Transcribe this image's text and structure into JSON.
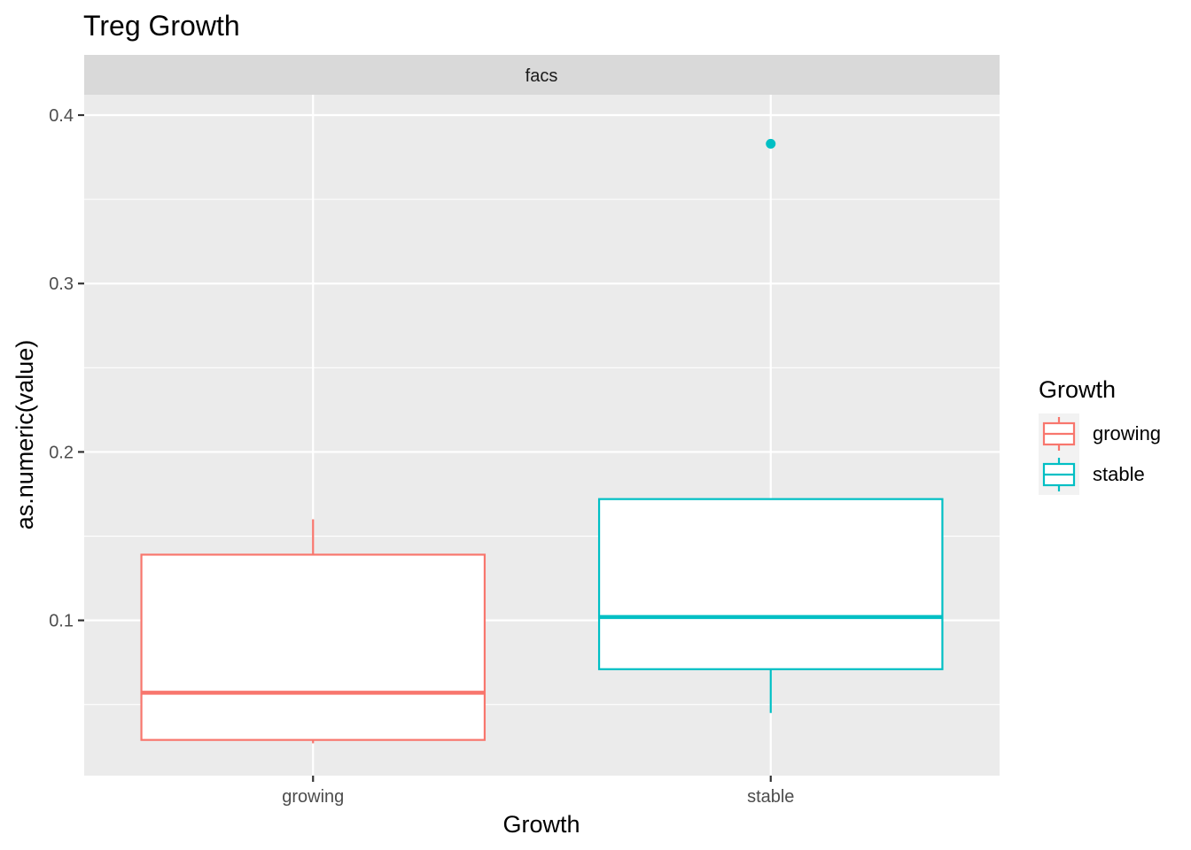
{
  "chart_data": {
    "type": "boxplot",
    "title": "Treg Growth",
    "facet_label": "facs",
    "xlabel": "Growth",
    "ylabel": "as.numeric(value)",
    "categories": [
      "growing",
      "stable"
    ],
    "ylim": [
      0.0078,
      0.4121
    ],
    "y_ticks": [
      0.1,
      0.2,
      0.3,
      0.4
    ],
    "y_tick_labels": [
      "0.1",
      "0.2",
      "0.3",
      "0.4"
    ],
    "grid": true,
    "series": [
      {
        "category": "growing",
        "whisker_low": 0.027,
        "q1": 0.029,
        "median": 0.057,
        "q3": 0.139,
        "whisker_high": 0.16,
        "outliers": [],
        "color": "#F8766D"
      },
      {
        "category": "stable",
        "whisker_low": 0.045,
        "q1": 0.071,
        "median": 0.102,
        "q3": 0.172,
        "whisker_high": 0.172,
        "outliers": [
          0.383
        ],
        "color": "#00BFC4"
      }
    ],
    "legend": {
      "title": "Growth",
      "position": "right",
      "items": [
        {
          "label": "growing",
          "color": "#F8766D"
        },
        {
          "label": "stable",
          "color": "#00BFC4"
        }
      ]
    }
  }
}
